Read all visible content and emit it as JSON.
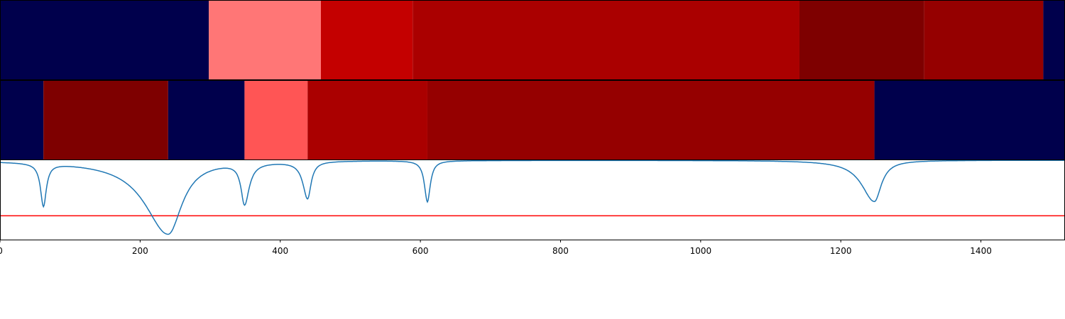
{
  "chart_data": {
    "type": "heatmap",
    "title": "",
    "xlabel": "",
    "ylabel": "",
    "xlim": [
      0,
      1520
    ],
    "x_ticks": [
      "0",
      "200",
      "400",
      "600",
      "800",
      "1000",
      "1200",
      "1400"
    ],
    "x_tick_values": [
      0,
      200,
      400,
      600,
      800,
      1000,
      1200,
      1400
    ],
    "colors": {
      "background_segment": "#00004c",
      "curve": "#1f77b4",
      "threshold_line": "#ff0000"
    },
    "segment_rows": [
      {
        "segments": [
          {
            "start": 0,
            "end": 298,
            "color": "#00004c"
          },
          {
            "start": 298,
            "end": 458,
            "color": "#ff7676"
          },
          {
            "start": 458,
            "end": 589,
            "color": "#c40000"
          },
          {
            "start": 589,
            "end": 1141,
            "color": "#aa0000"
          },
          {
            "start": 1141,
            "end": 1319,
            "color": "#7e0000"
          },
          {
            "start": 1319,
            "end": 1489,
            "color": "#950000"
          },
          {
            "start": 1489,
            "end": 1520,
            "color": "#00004c"
          }
        ]
      },
      {
        "segments": [
          {
            "start": 0,
            "end": 62,
            "color": "#00004c"
          },
          {
            "start": 62,
            "end": 240,
            "color": "#7e0000"
          },
          {
            "start": 240,
            "end": 349,
            "color": "#00004c"
          },
          {
            "start": 349,
            "end": 439,
            "color": "#ff5555"
          },
          {
            "start": 439,
            "end": 610,
            "color": "#aa0000"
          },
          {
            "start": 610,
            "end": 1248,
            "color": "#950000"
          },
          {
            "start": 1248,
            "end": 1520,
            "color": "#00004c"
          }
        ]
      }
    ],
    "signal": {
      "ylim": [
        0,
        1
      ],
      "threshold": 0.3,
      "baseline": 1.0,
      "dips": [
        {
          "center": 62,
          "depth": 0.54,
          "width_left": 5,
          "width_right": 5
        },
        {
          "center": 240,
          "depth": 0.93,
          "width_left": 40,
          "width_right": 24
        },
        {
          "center": 349,
          "depth": 0.52,
          "width_left": 6,
          "width_right": 8
        },
        {
          "center": 439,
          "depth": 0.47,
          "width_left": 8,
          "width_right": 6
        },
        {
          "center": 610,
          "depth": 0.52,
          "width_left": 5,
          "width_right": 5
        },
        {
          "center": 1248,
          "depth": 0.52,
          "width_left": 22,
          "width_right": 12
        }
      ]
    }
  }
}
